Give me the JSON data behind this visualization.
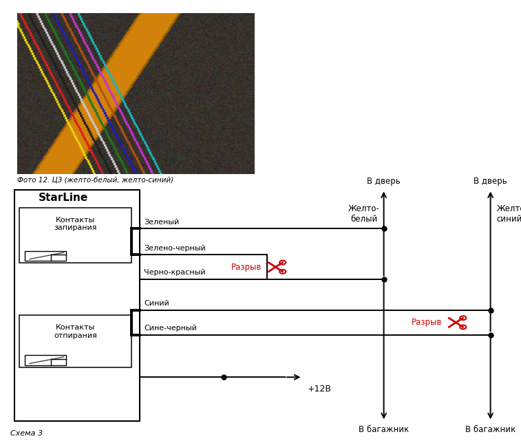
{
  "fig_width": 7.57,
  "fig_height": 6.41,
  "dpi": 100,
  "bg_color": "#ffffff",
  "photo_caption": "Фото 12. ЦЗ (желто-белый, желто-синий)",
  "schema_caption": "Схема 3",
  "starline_label": "StarLine",
  "box1_label": "Контакты\nзапирания",
  "box2_label": "Контакты\nотпирания",
  "wire_labels": [
    "Зеленый",
    "Зелено-черный",
    "Черно-красный",
    "Синий",
    "Сине-черный"
  ],
  "right_label1": "Желто-\nбелый",
  "right_label2": "Желто-\nсиний",
  "top_label": "В дверь",
  "bottom_label1": "В багажник",
  "razryv_label": "Разрыв",
  "plus12_label": "+12В",
  "line_color": "#000000",
  "red_color": "#cc0000"
}
